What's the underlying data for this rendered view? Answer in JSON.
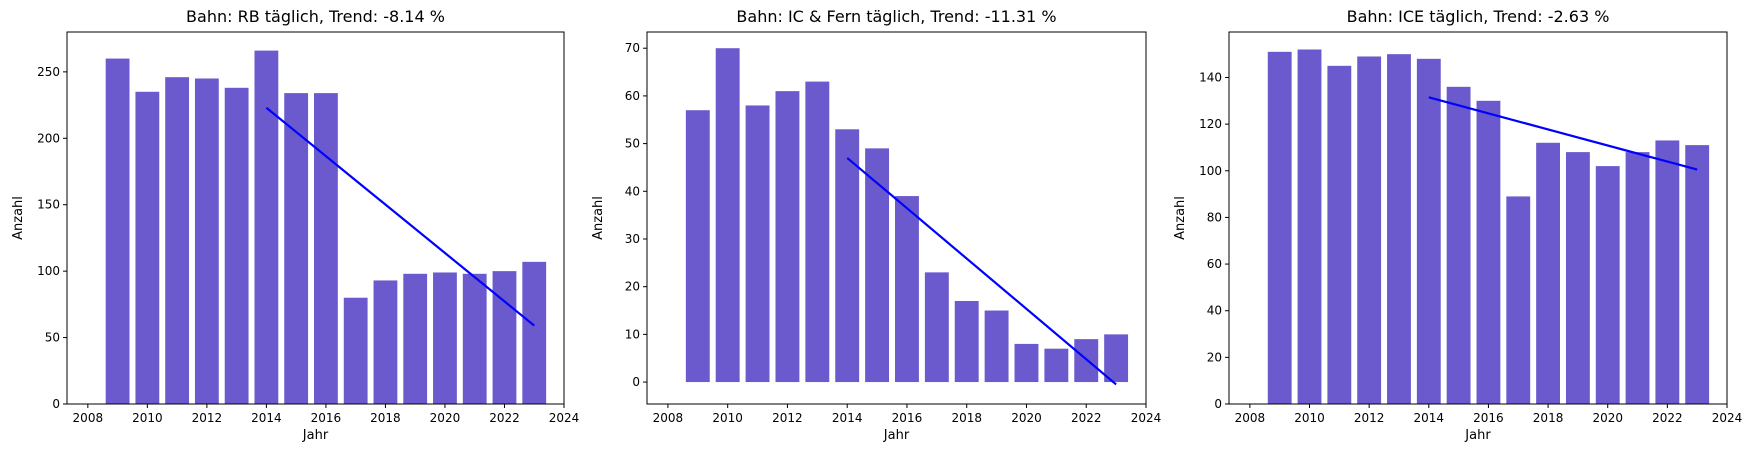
{
  "chart_data": [
    {
      "type": "bar",
      "title": "Bahn: RB täglich, Trend:  -8.14 %",
      "xlabel": "Jahr",
      "ylabel": "Anzahl",
      "x": [
        2009,
        2010,
        2011,
        2012,
        2013,
        2014,
        2015,
        2016,
        2017,
        2018,
        2019,
        2020,
        2021,
        2022,
        2023
      ],
      "values": [
        260,
        235,
        246,
        245,
        238,
        266,
        234,
        234,
        80,
        93,
        98,
        99,
        98,
        100,
        107
      ],
      "xlim": [
        2007.3,
        2024
      ],
      "ylim": [
        0,
        280
      ],
      "xticks": [
        2008,
        2010,
        2012,
        2014,
        2016,
        2018,
        2020,
        2022,
        2024
      ],
      "yticks": [
        0,
        50,
        100,
        150,
        200,
        250
      ],
      "trend": {
        "x": [
          2014,
          2023
        ],
        "y": [
          223,
          59
        ]
      },
      "bar_color": "#6a5acd",
      "trend_color": "#0000ff",
      "grid": false
    },
    {
      "type": "bar",
      "title": "Bahn: IC & Fern täglich, Trend:  -11.31 %",
      "xlabel": "Jahr",
      "ylabel": "Anzahl",
      "x": [
        2009,
        2010,
        2011,
        2012,
        2013,
        2014,
        2015,
        2016,
        2017,
        2018,
        2019,
        2020,
        2021,
        2022,
        2023
      ],
      "values": [
        57,
        70,
        58,
        61,
        63,
        53,
        49,
        39,
        23,
        17,
        15,
        8,
        7,
        9,
        10
      ],
      "xlim": [
        2007.3,
        2024
      ],
      "ylim": [
        -4.6,
        73.4
      ],
      "xticks": [
        2008,
        2010,
        2012,
        2014,
        2016,
        2018,
        2020,
        2022,
        2024
      ],
      "yticks": [
        0,
        10,
        20,
        30,
        40,
        50,
        60,
        70
      ],
      "trend": {
        "x": [
          2014,
          2023
        ],
        "y": [
          47,
          -0.5
        ]
      },
      "bar_color": "#6a5acd",
      "trend_color": "#0000ff",
      "grid": false
    },
    {
      "type": "bar",
      "title": "Bahn: ICE täglich, Trend:  -2.63 %",
      "xlabel": "Jahr",
      "ylabel": "Anzahl",
      "x": [
        2009,
        2010,
        2011,
        2012,
        2013,
        2014,
        2015,
        2016,
        2017,
        2018,
        2019,
        2020,
        2021,
        2022,
        2023
      ],
      "values": [
        151,
        152,
        145,
        149,
        150,
        148,
        136,
        130,
        89,
        112,
        108,
        102,
        108,
        113,
        111
      ],
      "xlim": [
        2007.3,
        2024
      ],
      "ylim": [
        0,
        159.5
      ],
      "xticks": [
        2008,
        2010,
        2012,
        2014,
        2016,
        2018,
        2020,
        2022,
        2024
      ],
      "yticks": [
        0,
        20,
        40,
        60,
        80,
        100,
        120,
        140
      ],
      "trend": {
        "x": [
          2014,
          2023
        ],
        "y": [
          131.5,
          100.5
        ]
      },
      "bar_color": "#6a5acd",
      "trend_color": "#0000ff",
      "grid": false
    }
  ]
}
